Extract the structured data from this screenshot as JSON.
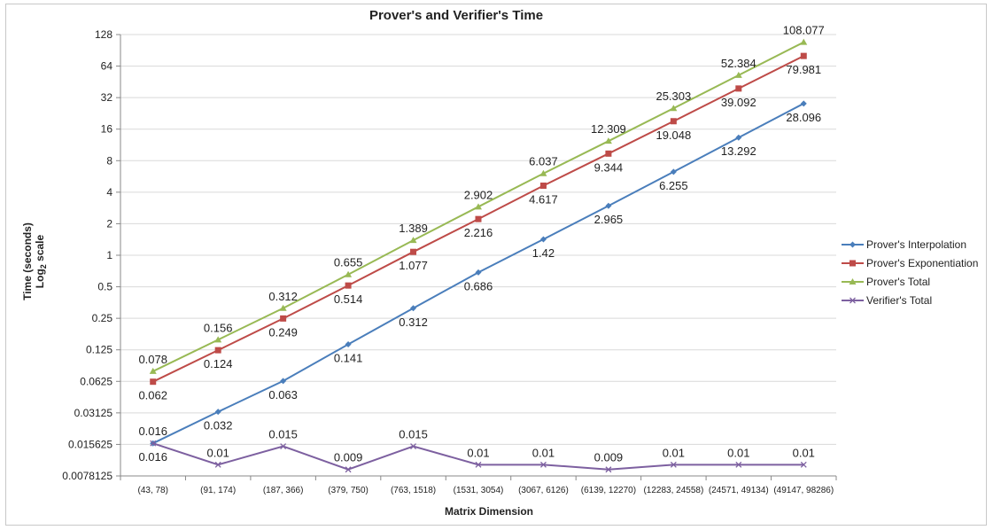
{
  "chart_data": {
    "type": "line",
    "title": "Prover's and Verifier's Time",
    "xlabel": "Matrix Dimension",
    "ylabel_line1": "Time (seconds)",
    "ylabel_line2": "Log",
    "ylabel_sub": "2",
    "ylabel_line2_suffix": " scale",
    "y_scale": "log2",
    "ylim": [
      0.0078125,
      128
    ],
    "y_ticks": [
      "0.0078125",
      "0.015625",
      "0.03125",
      "0.0625",
      "0.125",
      "0.25",
      "0.5",
      "1",
      "2",
      "4",
      "8",
      "16",
      "32",
      "64",
      "128"
    ],
    "y_tick_values": [
      0.0078125,
      0.015625,
      0.03125,
      0.0625,
      0.125,
      0.25,
      0.5,
      1,
      2,
      4,
      8,
      16,
      32,
      64,
      128
    ],
    "categories": [
      "(43, 78)",
      "(91, 174)",
      "(187, 366)",
      "(379, 750)",
      "(763, 1518)",
      "(1531, 3054)",
      "(3067, 6126)",
      "(6139, 12270)",
      "(12283, 24558)",
      "(24571, 49134)",
      "(49147, 98286)"
    ],
    "grid": "horizontal",
    "legend": "right",
    "series": [
      {
        "name": "Prover's Interpolation",
        "color": "#4a7ebb",
        "marker": "diamond",
        "values": [
          0.016,
          0.032,
          0.063,
          0.141,
          0.312,
          0.686,
          1.42,
          2.965,
          6.255,
          13.292,
          28.096
        ],
        "labels": [
          "0.016",
          "0.032",
          "0.063",
          "0.141",
          "0.312",
          "0.686",
          "1.42",
          "2.965",
          "6.255",
          "13.292",
          "28.096"
        ],
        "label_pos": "below"
      },
      {
        "name": "Prover's Exponentiation",
        "color": "#be4b48",
        "marker": "square",
        "values": [
          0.062,
          0.124,
          0.249,
          0.514,
          1.077,
          2.216,
          4.617,
          9.344,
          19.048,
          39.092,
          79.981
        ],
        "labels": [
          "0.062",
          "0.124",
          "0.249",
          "0.514",
          "1.077",
          "2.216",
          "4.617",
          "9.344",
          "19.048",
          "39.092",
          "79.981"
        ],
        "label_pos": "below"
      },
      {
        "name": "Prover's Total",
        "color": "#98b954",
        "marker": "triangle",
        "values": [
          0.078,
          0.156,
          0.312,
          0.655,
          1.389,
          2.902,
          6.037,
          12.309,
          25.303,
          52.384,
          108.077
        ],
        "labels": [
          "0.078",
          "0.156",
          "0.312",
          "0.655",
          "1.389",
          "2.902",
          "6.037",
          "12.309",
          "25.303",
          "52.384",
          "108.077"
        ],
        "label_pos": "above"
      },
      {
        "name": "Verifier's Total",
        "color": "#7d60a0",
        "marker": "x",
        "values": [
          0.016,
          0.01,
          0.015,
          0.009,
          0.015,
          0.01,
          0.01,
          0.009,
          0.01,
          0.01,
          0.01
        ],
        "labels": [
          "0.016",
          "0.01",
          "0.015",
          "0.009",
          "0.015",
          "0.01",
          "0.01",
          "0.009",
          "0.01",
          "0.01",
          "0.01"
        ],
        "label_pos": "above"
      }
    ]
  }
}
